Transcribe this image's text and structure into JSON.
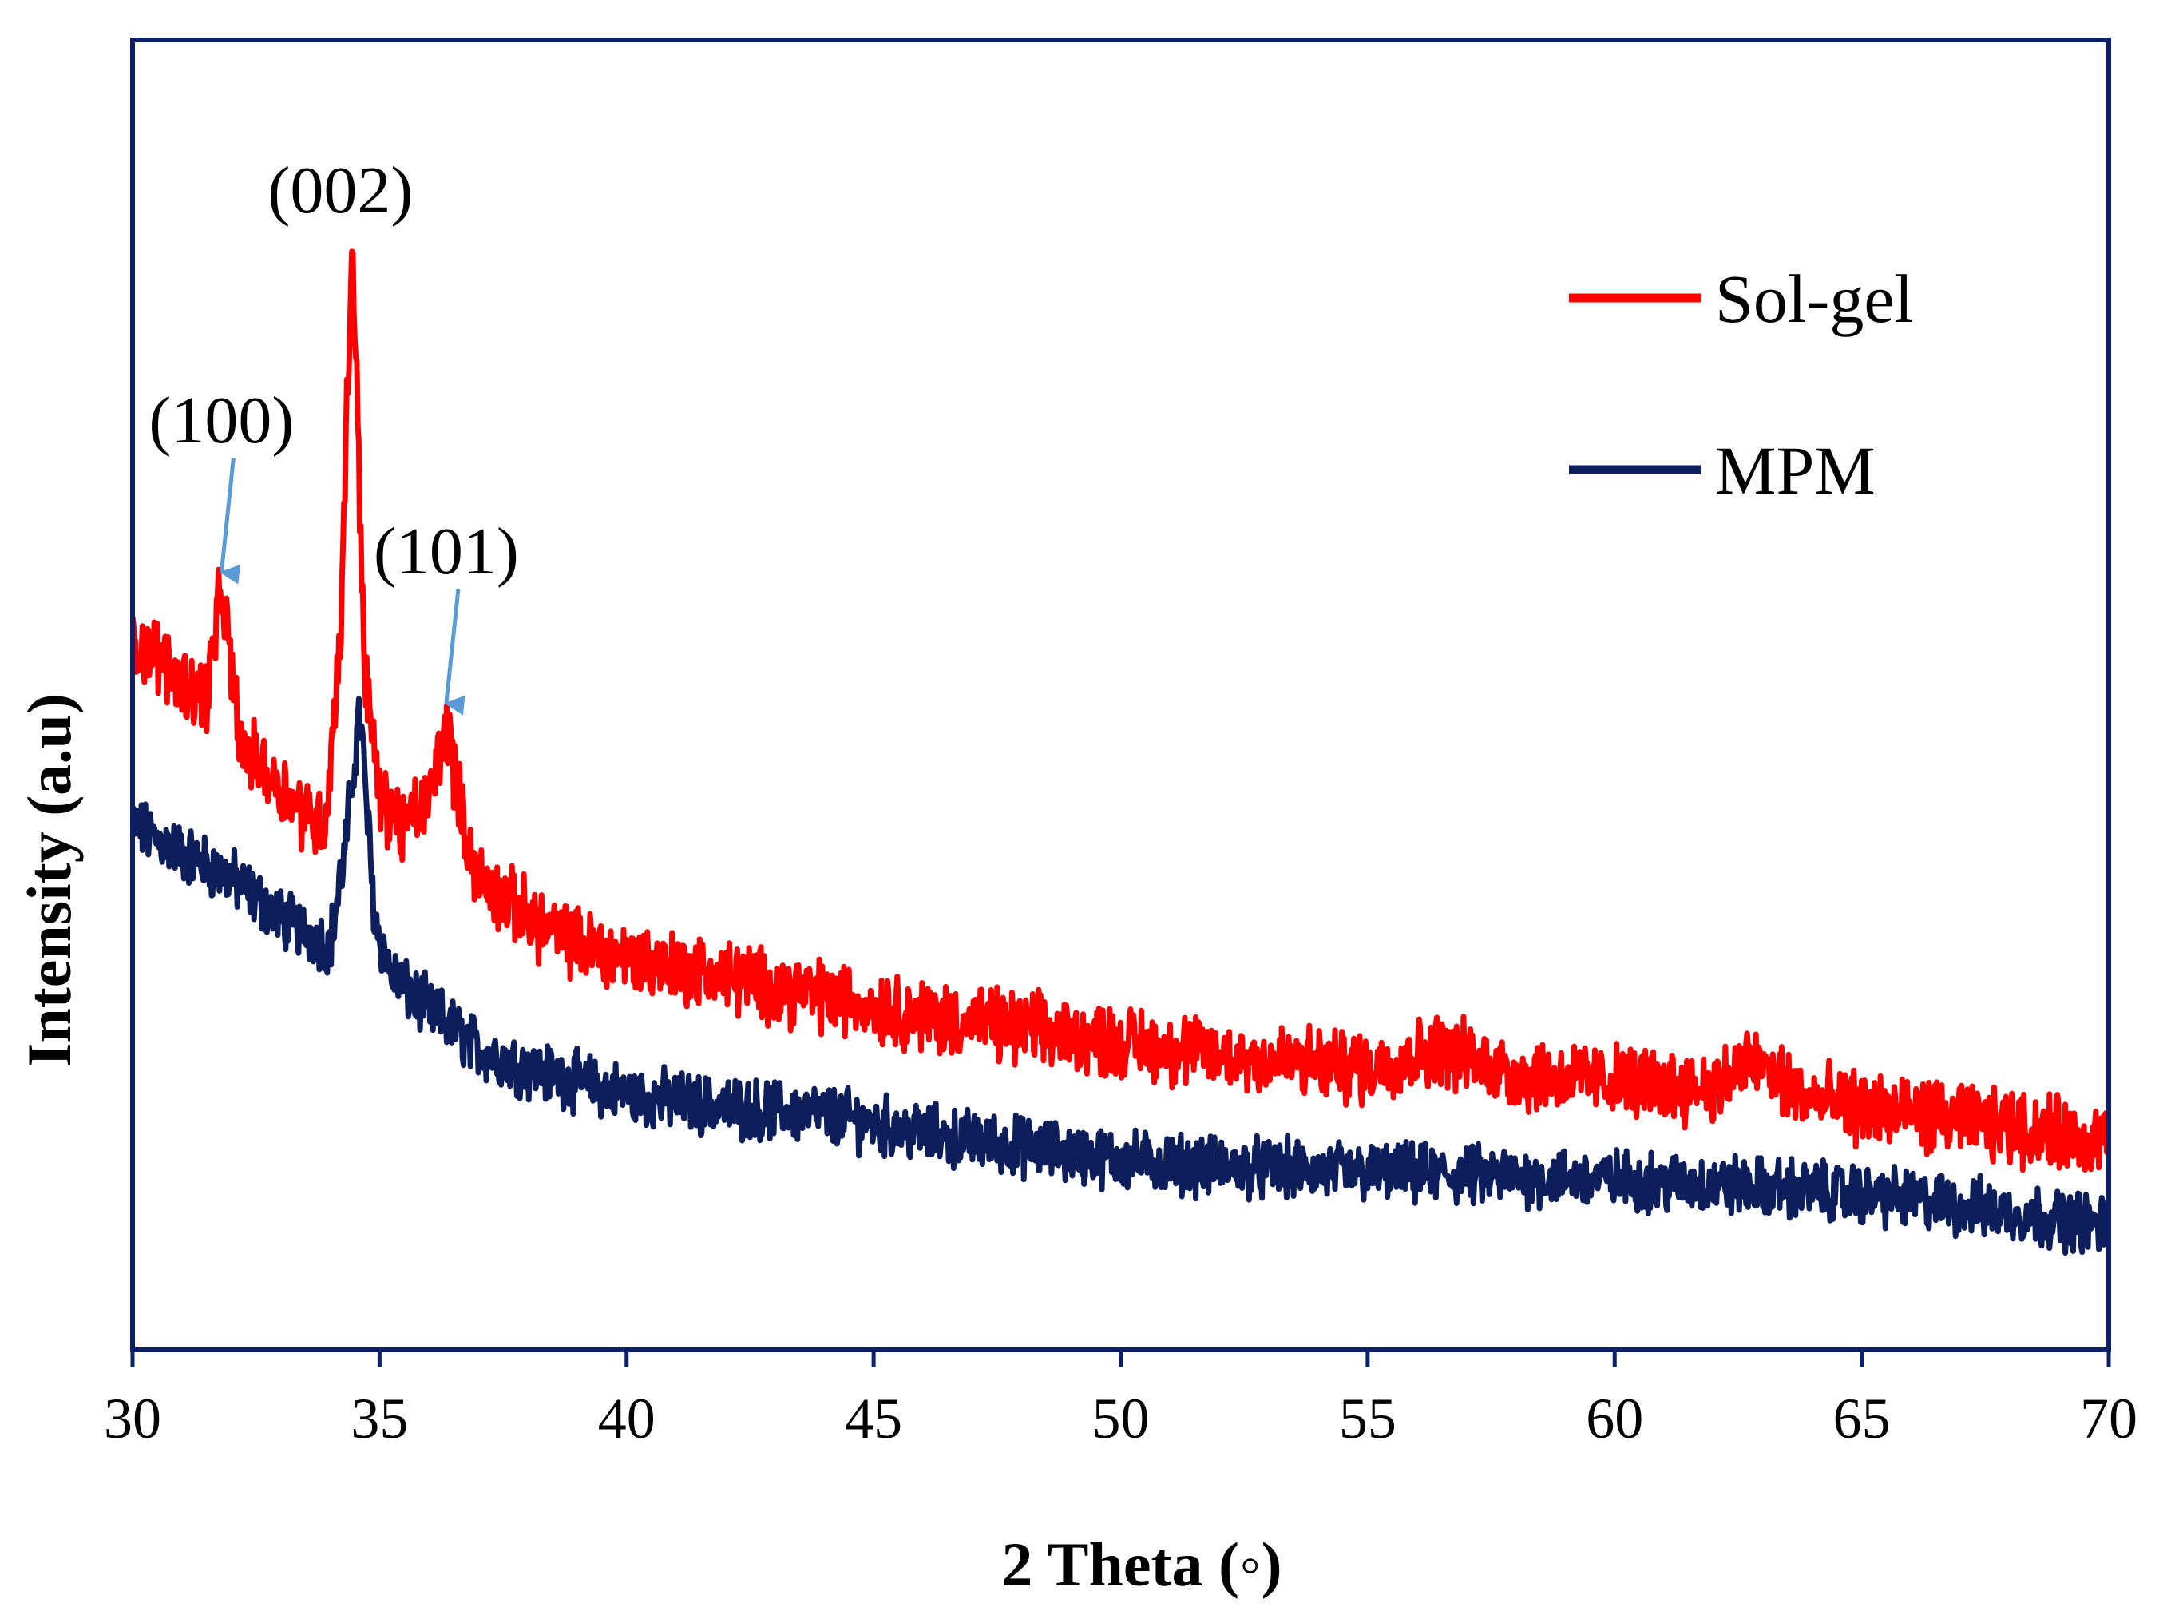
{
  "chart_data": {
    "type": "line",
    "title": "",
    "xlabel": "2 Theta (◦)",
    "ylabel": "Intensity (a.u)",
    "xlim": [
      30,
      70
    ],
    "ylim": [
      0,
      100
    ],
    "yticks_shown": false,
    "xticks": [
      30,
      35,
      40,
      45,
      50,
      55,
      60,
      65,
      70
    ],
    "grid": false,
    "legend_position": "top-right",
    "colors": {
      "frame": "#0b1f6b",
      "arrow": "#5b9bd5"
    },
    "series": [
      {
        "name": "Sol-gel",
        "color": "#ff0000",
        "noise": 2.2,
        "x": [
          30,
          30.5,
          31,
          31.5,
          31.8,
          32.2,
          33,
          33.5,
          33.9,
          34.2,
          34.45,
          34.7,
          35,
          35.5,
          36,
          36.35,
          36.7,
          37,
          38,
          39,
          40,
          42,
          44,
          46,
          48,
          50,
          52,
          55,
          56.5,
          58,
          60,
          62,
          62.8,
          64,
          66,
          68,
          70
        ],
        "y": [
          54,
          53,
          51,
          50,
          58,
          46,
          43,
          41,
          40,
          54,
          85,
          52,
          42,
          40,
          42,
          48,
          40,
          36,
          33,
          31,
          30,
          28.5,
          27,
          25.5,
          24.5,
          23.5,
          22.5,
          21.5,
          23,
          21,
          20.5,
          20,
          22,
          19,
          18,
          17,
          16
        ]
      },
      {
        "name": "MPM",
        "color": "#0c1f5c",
        "noise": 1.8,
        "x": [
          30,
          30.5,
          31,
          32,
          33,
          34,
          34.3,
          34.6,
          34.9,
          35.2,
          35.5,
          36,
          37,
          38,
          39,
          40,
          42,
          44,
          46,
          48,
          50,
          52,
          55,
          58,
          60,
          62,
          64,
          66,
          68,
          70
        ],
        "y": [
          40,
          39,
          38,
          36,
          33,
          31,
          38,
          49,
          33,
          29,
          27.5,
          26,
          23,
          21.5,
          20.5,
          19.5,
          18.5,
          18,
          16.5,
          15.5,
          14.5,
          14,
          13.5,
          13.2,
          13,
          12.6,
          12.2,
          11.5,
          10.5,
          9.5
        ]
      }
    ],
    "annotations": [
      {
        "text": "(100)",
        "x": 31.8,
        "y": 58,
        "arrow": true
      },
      {
        "text": "(002)",
        "x": 34.45,
        "y": 85,
        "arrow": false
      },
      {
        "text": "(101)",
        "x": 36.35,
        "y": 48,
        "arrow": true
      }
    ]
  }
}
